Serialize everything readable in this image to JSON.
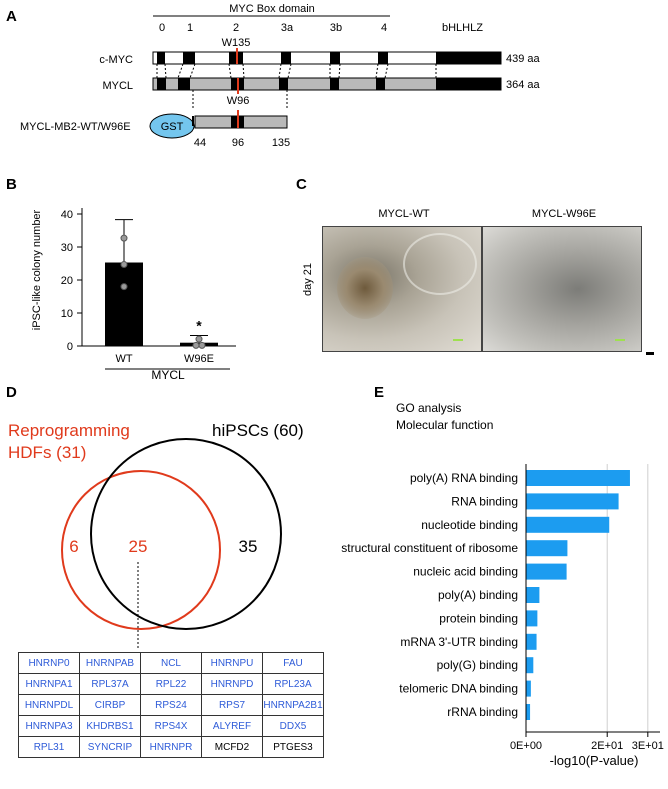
{
  "panels": {
    "A": "A",
    "B": "B",
    "C": "C",
    "D": "D",
    "E": "E"
  },
  "panel_a": {
    "domain_title": "MYC Box domain",
    "box_labels": [
      "0",
      "1",
      "2",
      "3a",
      "3b",
      "4"
    ],
    "bhlhlz": "bHLHLZ",
    "rows": [
      {
        "name": "c-MYC",
        "length": "439 aa"
      },
      {
        "name": "MYCL",
        "length": "364 aa"
      }
    ],
    "w135": "W135",
    "w96": "W96",
    "construct_name": "MYCL-MB2-WT/W96E",
    "gst": "GST",
    "positions": [
      "44",
      "96",
      "135"
    ]
  },
  "panel_b": {
    "ylabel": "iPSC-like colony number",
    "yticks": [
      "0",
      "10",
      "20",
      "30",
      "40"
    ],
    "categories": [
      "WT",
      "W96E"
    ],
    "group_label": "MYCL",
    "significance": "*"
  },
  "panel_c": {
    "labels": [
      "MYCL-WT",
      "MYCL-W96E"
    ],
    "day_label": "day 21"
  },
  "panel_d": {
    "set_a_name": "Reprogramming\nHDFs (31)",
    "set_a_line1": "Reprogramming",
    "set_a_line2": "HDFs (31)",
    "set_b_name": "hiPSCs (60)",
    "only_a": "6",
    "both": "25",
    "only_b": "35",
    "genes": [
      [
        "HNRNP0",
        "HNRNPAB",
        "NCL",
        "HNRNPU",
        "FAU"
      ],
      [
        "HNRNPA1",
        "RPL37A",
        "RPL22",
        "HNRNPD",
        "RPL23A"
      ],
      [
        "HNRNPDL",
        "CIRBP",
        "RPS24",
        "RPS7",
        "HNRNPA2B1"
      ],
      [
        "HNRNPA3",
        "KHDRBS1",
        "RPS4X",
        "ALYREF",
        "DDX5"
      ],
      [
        "RPL31",
        "SYNCRIP",
        "HNRNPR",
        "MCFD2",
        "PTGES3"
      ]
    ],
    "black_genes": [
      "MCFD2",
      "PTGES3"
    ]
  },
  "chart_data": [
    {
      "type": "bar",
      "panel": "B",
      "categories": [
        "WT",
        "W96E"
      ],
      "values": [
        25.3,
        1.0
      ],
      "error_upper": [
        38.3,
        3.2
      ],
      "points": [
        [
          32.7,
          24.7,
          18.0
        ],
        [
          2.1,
          0.2,
          0.2
        ]
      ],
      "ylabel": "iPSC-like colony number",
      "xlabel": "MYCL",
      "ylim": [
        0,
        40
      ],
      "yticks": [
        0,
        10,
        20,
        30,
        40
      ],
      "annotations": [
        "*"
      ],
      "colors": {
        "bar": "#000000",
        "point": "#9a9a9a"
      }
    },
    {
      "type": "bar",
      "panel": "E",
      "orientation": "horizontal",
      "title": "GO analysis",
      "subtitle": "Molecular function",
      "categories": [
        "poly(A) RNA binding",
        "RNA binding",
        "nucleotide binding",
        "structural constituent of ribosome",
        "nucleic acid binding",
        "poly(A) binding",
        "protein binding",
        "mRNA 3'-UTR binding",
        "poly(G) binding",
        "telomeric DNA binding",
        "rRNA binding"
      ],
      "values": [
        25.6,
        22.8,
        20.5,
        10.2,
        10.0,
        3.3,
        2.8,
        2.6,
        1.8,
        1.2,
        1.0
      ],
      "xlabel": "-log10(P-value)",
      "xlim": [
        0,
        30
      ],
      "xticks": [
        "0E+00",
        "2E+01",
        "3E+01"
      ],
      "xtick_values": [
        0,
        20,
        30
      ],
      "grid": true,
      "colors": {
        "bar": "#1c9cf0"
      }
    }
  ]
}
